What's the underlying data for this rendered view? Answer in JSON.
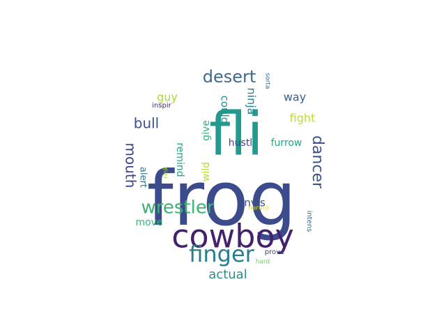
{
  "word_cloud": {
    "words": [
      {
        "id": "frog",
        "text": "frog",
        "weight": 1.0,
        "color": "#3b4b8c"
      },
      {
        "id": "fli",
        "text": "fli",
        "weight": 0.78,
        "color": "#239a8d"
      },
      {
        "id": "cowboy",
        "text": "cowboy",
        "weight": 0.48,
        "color": "#45206f"
      },
      {
        "id": "finger",
        "text": "finger",
        "weight": 0.33,
        "color": "#2a7d8f"
      },
      {
        "id": "wrestler",
        "text": "wrestler",
        "weight": 0.25,
        "color": "#3db272"
      },
      {
        "id": "desert",
        "text": "desert",
        "weight": 0.22,
        "color": "#3f6a8c"
      },
      {
        "id": "dancer",
        "text": "dancer",
        "weight": 0.2,
        "color": "#3b528b"
      },
      {
        "id": "bull",
        "text": "bull",
        "weight": 0.18,
        "color": "#3c4f8a"
      },
      {
        "id": "mouth",
        "text": "mouth",
        "weight": 0.18,
        "color": "#404387"
      },
      {
        "id": "actual",
        "text": "actual",
        "weight": 0.16,
        "color": "#2e8b8b"
      },
      {
        "id": "ninja",
        "text": "ninja",
        "weight": 0.14,
        "color": "#277f8e"
      },
      {
        "id": "way",
        "text": "way",
        "weight": 0.13,
        "color": "#365d8d"
      },
      {
        "id": "guy",
        "text": "guy",
        "weight": 0.13,
        "color": "#a8db34"
      },
      {
        "id": "fight",
        "text": "fight",
        "weight": 0.13,
        "color": "#bddf26"
      },
      {
        "id": "could",
        "text": "could",
        "weight": 0.12,
        "color": "#21918c"
      },
      {
        "id": "envis",
        "text": "envis",
        "weight": 0.12,
        "color": "#3e4c8a"
      },
      {
        "id": "move",
        "text": "move",
        "weight": 0.12,
        "color": "#35b779"
      },
      {
        "id": "furrow",
        "text": "furrow",
        "weight": 0.12,
        "color": "#22a884"
      },
      {
        "id": "hustl",
        "text": "hustl",
        "weight": 0.11,
        "color": "#414487"
      },
      {
        "id": "give",
        "text": "give",
        "weight": 0.11,
        "color": "#2db27d"
      },
      {
        "id": "remind",
        "text": "remind",
        "weight": 0.11,
        "color": "#20a386"
      },
      {
        "id": "wild",
        "text": "wild",
        "weight": 0.11,
        "color": "#b5de2b"
      },
      {
        "id": "alert",
        "text": "alert",
        "weight": 0.1,
        "color": "#2c738e"
      },
      {
        "id": "prove",
        "text": "prove",
        "weight": 0.07,
        "color": "#433e85"
      },
      {
        "id": "intens",
        "text": "intens",
        "weight": 0.07,
        "color": "#2c728e"
      },
      {
        "id": "naruto",
        "text": "naruto",
        "weight": 0.06,
        "color": "#d8e219"
      },
      {
        "id": "sorta",
        "text": "sorta",
        "weight": 0.06,
        "color": "#31688e"
      },
      {
        "id": "inspir",
        "text": "inspir",
        "weight": 0.06,
        "color": "#482878"
      },
      {
        "id": "rink",
        "text": "rink",
        "weight": 0.05,
        "color": "#a5db36"
      },
      {
        "id": "hard",
        "text": "hard",
        "weight": 0.06,
        "color": "#6ccd5a"
      }
    ]
  }
}
